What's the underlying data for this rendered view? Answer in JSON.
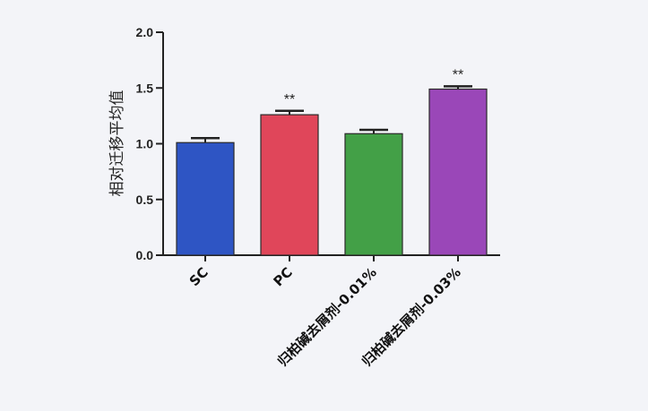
{
  "chart_data": {
    "type": "bar",
    "title": "",
    "xlabel": "",
    "ylabel": "相对迁移平均值",
    "ylim": [
      0,
      2.0
    ],
    "yticks": [
      "0.0",
      "0.5",
      "1.0",
      "1.5",
      "2.0"
    ],
    "yticks_values": [
      0,
      0.5,
      1.0,
      1.5,
      2.0
    ],
    "grid": false,
    "categories": [
      "SC",
      "PC",
      "归柏碱去屑剂-0.01%",
      "归柏碱去屑剂-0.03%"
    ],
    "values": [
      1.01,
      1.26,
      1.09,
      1.49
    ],
    "errors": [
      0.04,
      0.035,
      0.035,
      0.025
    ],
    "significance": [
      "",
      "**",
      "",
      "**"
    ],
    "colors": [
      "#2e55c4",
      "#e0465a",
      "#43a047",
      "#9a47b8"
    ]
  }
}
